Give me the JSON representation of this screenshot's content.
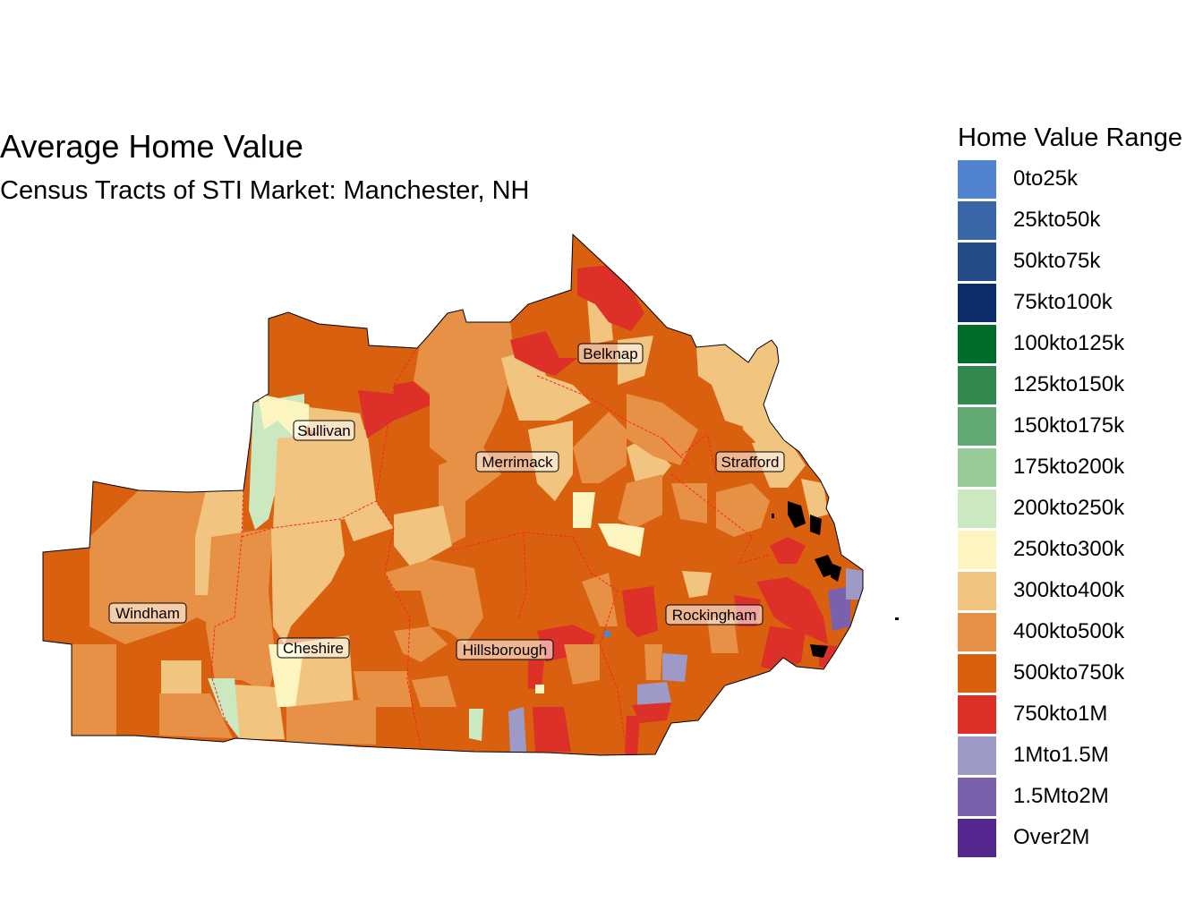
{
  "title": "Average Home Value",
  "subtitle": "Census Tracts of STI Market: Manchester, NH",
  "legend": {
    "title": "Home Value Range",
    "items": [
      {
        "label": "0to25k",
        "color": "#5183CE"
      },
      {
        "label": "25kto50k",
        "color": "#3A67A8"
      },
      {
        "label": "50kto75k",
        "color": "#234C87"
      },
      {
        "label": "75kto100k",
        "color": "#0C2D69"
      },
      {
        "label": "100kto125k",
        "color": "#006D2C"
      },
      {
        "label": "125kto150k",
        "color": "#31894F"
      },
      {
        "label": "150kto175k",
        "color": "#62A873"
      },
      {
        "label": "175kto200k",
        "color": "#98CB98"
      },
      {
        "label": "200kto250k",
        "color": "#CBE8C1"
      },
      {
        "label": "250kto300k",
        "color": "#FDF5BF"
      },
      {
        "label": "300kto400k",
        "color": "#F1C480"
      },
      {
        "label": "400kto500k",
        "color": "#E69146"
      },
      {
        "label": "500kto750k",
        "color": "#D9600E"
      },
      {
        "label": "750kto1M",
        "color": "#DC3028"
      },
      {
        "label": "1Mto1.5M",
        "color": "#9E9AC8"
      },
      {
        "label": "1.5Mto2M",
        "color": "#7B61AC"
      },
      {
        "label": "Over2M",
        "color": "#54278F"
      }
    ]
  },
  "counties": [
    {
      "name": "Sullivan"
    },
    {
      "name": "Belknap"
    },
    {
      "name": "Merrimack"
    },
    {
      "name": "Strafford"
    },
    {
      "name": "Windham"
    },
    {
      "name": "Rockingham"
    },
    {
      "name": "Cheshire"
    },
    {
      "name": "Hillsborough"
    }
  ]
}
